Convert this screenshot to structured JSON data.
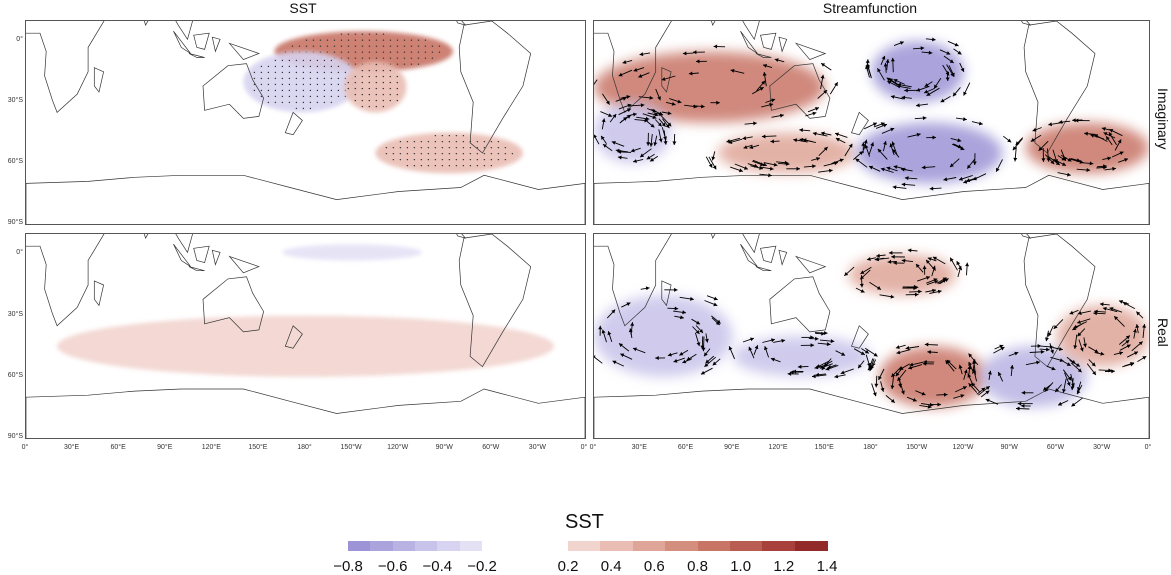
{
  "columns": [
    {
      "title": "SST"
    },
    {
      "title": "Streamfunction"
    }
  ],
  "rows": [
    {
      "label": "Imaginary"
    },
    {
      "label": "Real"
    }
  ],
  "lat_ticks": [
    "0°",
    "30°S",
    "60°S",
    "90°S"
  ],
  "lon_ticks": [
    "0°",
    "30°E",
    "60°E",
    "90°E",
    "120°E",
    "150°E",
    "180°",
    "150°W",
    "120°W",
    "90°W",
    "60°W",
    "30°W",
    "0°"
  ],
  "colorbar": {
    "title": "SST",
    "negative_ticks": [
      "−0.8",
      "−0.6",
      "−0.4",
      "−0.2"
    ],
    "positive_ticks": [
      "0.2",
      "0.4",
      "0.6",
      "0.8",
      "1.0",
      "1.2",
      "1.4"
    ],
    "negative_colors": [
      "#9c94d6",
      "#aaa3dc",
      "#b9b3e3",
      "#c8c3ea",
      "#d7d3f0",
      "#e4e1f5"
    ],
    "positive_colors": [
      "#f2d4cf",
      "#e9bdb4",
      "#dfa598",
      "#d48e7e",
      "#c87566",
      "#b95c52",
      "#a8413c",
      "#922a2a"
    ]
  },
  "colors": {
    "positive": "#c0554a",
    "negative": "#5b52c0",
    "coast": "#333333",
    "arrow": "#000000"
  },
  "chart_data": {
    "type": "heatmap",
    "panels": [
      {
        "column": "SST",
        "row": "Imaginary",
        "anomalies": [
          {
            "region": "Central-eastern equatorial Pacific",
            "sign": "positive",
            "value": 0.8,
            "lon": [
              160,
              275
            ],
            "lat": [
              5,
              -15
            ],
            "stippled": true
          },
          {
            "region": "Western Pacific / South Pacific",
            "sign": "negative",
            "value": -0.3,
            "lon": [
              140,
              215
            ],
            "lat": [
              -5,
              -35
            ],
            "stippled": true
          },
          {
            "region": "Southeast Pacific",
            "sign": "positive",
            "value": 0.4,
            "lon": [
              205,
              245
            ],
            "lat": [
              -10,
              -35
            ],
            "stippled": true
          },
          {
            "region": "Southern Ocean Pacific sector",
            "sign": "mixed",
            "value": 0.3,
            "lon": [
              225,
              320
            ],
            "lat": [
              -45,
              -65
            ],
            "stippled": true
          }
        ]
      },
      {
        "column": "Streamfunction",
        "row": "Imaginary",
        "anomalies": [
          {
            "sign": "positive",
            "value": 0.8,
            "lon": [
              0,
              150
            ],
            "lat": [
              -5,
              -40
            ]
          },
          {
            "sign": "negative",
            "value": -0.8,
            "lon": [
              180,
              240
            ],
            "lat": [
              0,
              -30
            ]
          },
          {
            "sign": "positive",
            "value": 0.6,
            "lon": [
              80,
              170
            ],
            "lat": [
              -45,
              -65
            ]
          },
          {
            "sign": "negative",
            "value": -0.8,
            "lon": [
              170,
              265
            ],
            "lat": [
              -40,
              -70
            ]
          },
          {
            "sign": "positive",
            "value": 0.8,
            "lon": [
              280,
              360
            ],
            "lat": [
              -40,
              -65
            ]
          },
          {
            "sign": "negative",
            "value": -0.4,
            "lon": [
              0,
              50
            ],
            "lat": [
              -30,
              -60
            ]
          }
        ]
      },
      {
        "column": "SST",
        "row": "Real",
        "anomalies": [
          {
            "region": "Central equatorial Pacific",
            "sign": "negative",
            "value": -0.2,
            "lon": [
              165,
              255
            ],
            "lat": [
              5,
              -3
            ],
            "stippled": false
          },
          {
            "region": "Southern Indian / Pacific scattered patches",
            "sign": "mixed",
            "value": 0.2,
            "lon": [
              20,
              340
            ],
            "lat": [
              -30,
              -60
            ],
            "stippled": false
          }
        ]
      },
      {
        "column": "Streamfunction",
        "row": "Real",
        "anomalies": [
          {
            "sign": "positive",
            "value": 0.6,
            "lon": [
              165,
              235
            ],
            "lat": [
              0,
              -20
            ]
          },
          {
            "sign": "negative",
            "value": -0.4,
            "lon": [
              0,
              90
            ],
            "lat": [
              -20,
              -60
            ]
          },
          {
            "sign": "positive",
            "value": 0.8,
            "lon": [
              185,
              255
            ],
            "lat": [
              -45,
              -75
            ]
          },
          {
            "sign": "negative",
            "value": -0.6,
            "lon": [
              250,
              320
            ],
            "lat": [
              -45,
              -75
            ]
          },
          {
            "sign": "positive",
            "value": 0.6,
            "lon": [
              300,
              360
            ],
            "lat": [
              -25,
              -55
            ]
          },
          {
            "sign": "negative",
            "value": -0.4,
            "lon": [
              90,
              180
            ],
            "lat": [
              -40,
              -60
            ]
          }
        ]
      }
    ],
    "xlabel": "",
    "ylabel": "",
    "xlim": [
      0,
      360
    ],
    "ylim": [
      -90,
      10
    ],
    "grid": false,
    "colorbar_range": [
      -0.8,
      1.4
    ]
  }
}
